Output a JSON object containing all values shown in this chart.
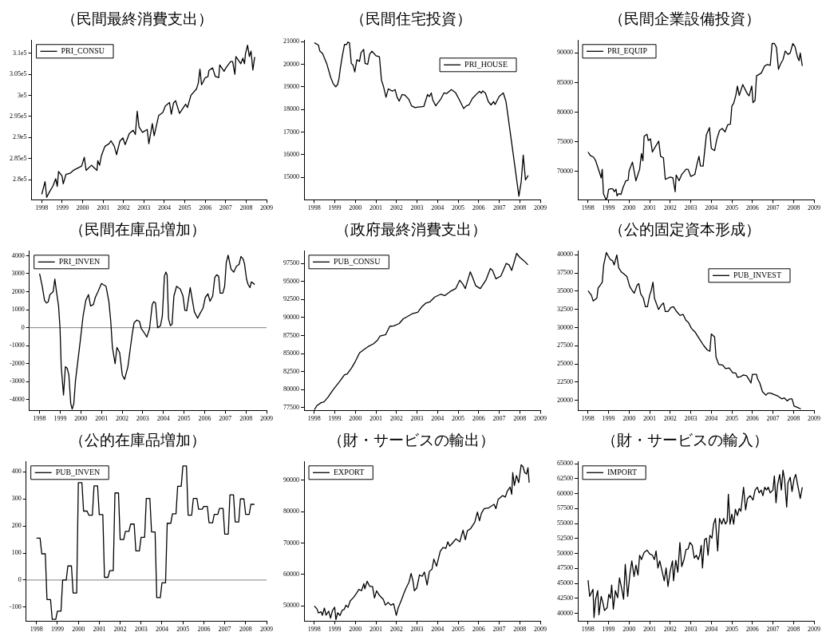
{
  "chart_data": [
    {
      "type": "line",
      "title": "（民間最終消費支出）",
      "legend": "top left",
      "xlim": [
        1997.5,
        2009
      ],
      "xticks": [
        1998,
        1999,
        2000,
        2001,
        2002,
        2003,
        2004,
        2005,
        2006,
        2007,
        2008,
        2009
      ],
      "ylim": [
        275200,
        313000
      ],
      "yticks": [
        {
          "value": 280000,
          "label": "2.8e5"
        },
        {
          "value": 285000,
          "label": "2.85e5"
        },
        {
          "value": 290000,
          "label": "2.9e5"
        },
        {
          "value": 295000,
          "label": "2.95e5"
        },
        {
          "value": 300000,
          "label": "3e5"
        },
        {
          "value": 305000,
          "label": "3.05e5"
        },
        {
          "value": 310000,
          "label": "3.1e5"
        }
      ],
      "x": [
        1998.0,
        1998.16,
        1998.24,
        1998.39,
        1998.55,
        1998.68,
        1998.76,
        1998.82,
        1998.99,
        1999.05,
        1999.18,
        1999.38,
        1999.55,
        1999.95,
        2000.08,
        2000.17,
        2000.43,
        2000.7,
        2000.74,
        2000.83,
        2000.92,
        2001.09,
        2001.29,
        2001.39,
        2001.55,
        2001.66,
        2001.82,
        2001.97,
        2002.08,
        2002.28,
        2002.47,
        2002.58,
        2002.67,
        2002.76,
        2002.93,
        2003.16,
        2003.24,
        2003.41,
        2003.5,
        2003.72,
        2003.92,
        2004.05,
        2004.25,
        2004.34,
        2004.45,
        2004.55,
        2004.74,
        2005.04,
        2005.13,
        2005.3,
        2005.57,
        2005.66,
        2005.74,
        2005.82,
        2006.0,
        2006.13,
        2006.18,
        2006.36,
        2006.49,
        2006.66,
        2006.71,
        2006.92,
        2007.01,
        2007.24,
        2007.34,
        2007.45,
        2007.5,
        2007.74,
        2007.84,
        2007.92,
        2007.97,
        2008.07,
        2008.16,
        2008.24,
        2008.33,
        2008.42
      ],
      "series": [
        {
          "name": "PRI_CONSU",
          "color": "#000000",
          "values": [
            276500,
            279500,
            275800,
            277200,
            278500,
            280200,
            278400,
            281900,
            280900,
            279000,
            281200,
            281500,
            282200,
            283200,
            285300,
            282200,
            283400,
            282200,
            284500,
            283400,
            285700,
            287900,
            288500,
            289200,
            287900,
            285900,
            289100,
            289900,
            288300,
            290900,
            291700,
            290700,
            296200,
            292500,
            291200,
            291900,
            288500,
            293300,
            290400,
            295200,
            295900,
            297500,
            298300,
            295500,
            298200,
            298700,
            295700,
            297900,
            297100,
            300000,
            301500,
            302900,
            306200,
            302500,
            304200,
            304400,
            305900,
            306500,
            304500,
            304200,
            307200,
            305700,
            306500,
            308000,
            308000,
            305000,
            309200,
            307500,
            308800,
            307500,
            309900,
            311900,
            309200,
            310500,
            306000,
            309100
          ]
        }
      ]
    },
    {
      "type": "line",
      "title": "（民間住宅投資）",
      "legend": "top right",
      "xlim": [
        1997.5,
        2009
      ],
      "xticks": [
        1998,
        1999,
        2000,
        2001,
        2002,
        2003,
        2004,
        2005,
        2006,
        2007,
        2008,
        2009
      ],
      "ylim": [
        14000,
        21050
      ],
      "yticks": [
        15000,
        16000,
        17000,
        18000,
        19000,
        20000,
        21000
      ],
      "x": [
        1998.0,
        1998.2,
        1998.27,
        1998.4,
        1998.6,
        1998.8,
        1998.91,
        1999.04,
        1999.13,
        1999.2,
        1999.27,
        1999.36,
        1999.47,
        1999.57,
        1999.63,
        1999.71,
        1999.8,
        1999.89,
        1999.97,
        2000.07,
        2000.2,
        2000.27,
        2000.4,
        2000.47,
        2000.6,
        2000.69,
        2000.8,
        2001.0,
        2001.17,
        2001.27,
        2001.36,
        2001.49,
        2001.6,
        2001.8,
        2001.93,
        2002.03,
        2002.13,
        2002.27,
        2002.4,
        2002.6,
        2002.73,
        2002.91,
        2003.0,
        2003.33,
        2003.51,
        2003.6,
        2003.69,
        2003.77,
        2003.91,
        2004.17,
        2004.31,
        2004.44,
        2004.67,
        2004.87,
        2005.07,
        2005.27,
        2005.4,
        2005.53,
        2005.69,
        2005.91,
        2006.04,
        2006.13,
        2006.2,
        2006.33,
        2006.47,
        2006.6,
        2006.73,
        2006.8,
        2007.0,
        2007.2,
        2007.33,
        2007.43,
        2007.67,
        2007.8,
        2007.96,
        2008.07,
        2008.17,
        2008.28,
        2008.41
      ],
      "series": [
        {
          "name": "PRI_HOUSE",
          "color": "#000000",
          "values": [
            20950,
            20850,
            20580,
            20480,
            20040,
            19410,
            19160,
            19000,
            19100,
            19350,
            19850,
            20350,
            20880,
            20870,
            20980,
            20950,
            20040,
            19950,
            19660,
            20200,
            20130,
            20500,
            20660,
            20040,
            20000,
            20440,
            20580,
            20380,
            20330,
            19290,
            19040,
            18540,
            18910,
            18810,
            18880,
            18540,
            18370,
            18660,
            18640,
            18450,
            18160,
            18080,
            18100,
            18130,
            18660,
            18570,
            18730,
            18410,
            18160,
            18480,
            18730,
            18700,
            18880,
            18750,
            18410,
            18040,
            18160,
            18200,
            18480,
            18690,
            18800,
            18720,
            18820,
            18720,
            18350,
            18200,
            18350,
            18220,
            18580,
            18730,
            18350,
            17700,
            16100,
            15230,
            14160,
            14790,
            15980,
            14880,
            15080
          ]
        }
      ]
    },
    {
      "type": "line",
      "title": "（民間企業設備投資）",
      "legend": "top left",
      "xlim": [
        1997.5,
        2009
      ],
      "xticks": [
        1998,
        1999,
        2000,
        2001,
        2002,
        2003,
        2004,
        2005,
        2006,
        2007,
        2008,
        2009
      ],
      "ylim": [
        65200,
        92100
      ],
      "yticks": [
        70000,
        75000,
        80000,
        85000,
        90000
      ],
      "x": [
        1998.0,
        1998.11,
        1998.27,
        1998.37,
        1998.53,
        1998.64,
        1998.69,
        1998.75,
        1998.87,
        1998.93,
        1999.0,
        1999.09,
        1999.2,
        1999.28,
        1999.36,
        1999.41,
        1999.49,
        1999.6,
        1999.71,
        1999.84,
        1999.95,
        2000.0,
        2000.16,
        2000.33,
        2000.51,
        2000.6,
        2000.67,
        2000.73,
        2000.87,
        2000.93,
        2001.04,
        2001.13,
        2001.27,
        2001.44,
        2001.53,
        2001.67,
        2001.76,
        2002.0,
        2002.13,
        2002.24,
        2002.29,
        2002.43,
        2002.56,
        2002.77,
        2002.87,
        2003.0,
        2003.2,
        2003.31,
        2003.4,
        2003.47,
        2003.6,
        2003.76,
        2003.91,
        2004.0,
        2004.16,
        2004.27,
        2004.4,
        2004.53,
        2004.67,
        2004.8,
        2004.93,
        2005.0,
        2005.09,
        2005.2,
        2005.27,
        2005.36,
        2005.53,
        2005.76,
        2005.84,
        2005.97,
        2006.03,
        2006.13,
        2006.2,
        2006.43,
        2006.6,
        2006.73,
        2006.87,
        2006.96,
        2007.07,
        2007.17,
        2007.27,
        2007.36,
        2007.49,
        2007.6,
        2007.73,
        2007.84,
        2007.97,
        2008.07,
        2008.2,
        2008.27,
        2008.33,
        2008.43
      ],
      "series": [
        {
          "name": "PRI_EQUIP",
          "color": "#000000",
          "values": [
            73270,
            72680,
            72400,
            71800,
            70100,
            68900,
            70360,
            66240,
            65270,
            65500,
            66960,
            67060,
            67060,
            66570,
            67000,
            65890,
            66240,
            66100,
            67350,
            68420,
            68520,
            70120,
            71570,
            68420,
            70360,
            73030,
            71810,
            75940,
            76270,
            75210,
            75500,
            73270,
            74140,
            75110,
            72540,
            72300,
            68660,
            69050,
            68900,
            66570,
            69390,
            68420,
            69490,
            70360,
            70360,
            69150,
            69500,
            71330,
            72540,
            70940,
            70900,
            76180,
            77390,
            73880,
            73510,
            75450,
            76910,
            77250,
            76670,
            77880,
            77980,
            81030,
            81520,
            82970,
            84420,
            82820,
            84670,
            83060,
            82770,
            84420,
            81610,
            82000,
            86120,
            86600,
            87820,
            88060,
            87910,
            91600,
            91600,
            90970,
            87240,
            88060,
            88880,
            90340,
            89760,
            90000,
            91600,
            91120,
            89270,
            88690,
            90000,
            87820
          ]
        }
      ]
    },
    {
      "type": "line",
      "title": "（民間在庫品増加）",
      "legend": "top left",
      "xlim": [
        1997.5,
        2009
      ],
      "xticks": [
        1998,
        1999,
        2000,
        2001,
        2002,
        2003,
        2004,
        2005,
        2006,
        2007,
        2008,
        2009
      ],
      "ylim": [
        -4600,
        4250
      ],
      "yticks": [
        -4000,
        -3000,
        -2000,
        -1000,
        0,
        1000,
        2000,
        3000,
        4000
      ],
      "ref_lines": [
        {
          "axis": "y",
          "value": 0,
          "color": "#808080"
        }
      ],
      "x": [
        1998.0,
        1998.13,
        1998.24,
        1998.33,
        1998.42,
        1998.5,
        1998.66,
        1998.74,
        1998.82,
        1998.92,
        1998.99,
        1999.05,
        1999.16,
        1999.25,
        1999.34,
        1999.42,
        1999.51,
        1999.58,
        1999.66,
        1999.74,
        1999.97,
        2000.11,
        2000.24,
        2000.37,
        2000.47,
        2000.61,
        2000.7,
        2000.83,
        2001.0,
        2001.09,
        2001.22,
        2001.36,
        2001.45,
        2001.53,
        2001.66,
        2001.75,
        2001.88,
        2002.01,
        2002.12,
        2002.28,
        2002.37,
        2002.5,
        2002.58,
        2002.71,
        2002.84,
        2002.93,
        2003.07,
        2003.2,
        2003.33,
        2003.46,
        2003.53,
        2003.62,
        2003.72,
        2003.86,
        2003.95,
        2004.05,
        2004.12,
        2004.18,
        2004.25,
        2004.34,
        2004.42,
        2004.51,
        2004.64,
        2004.82,
        2004.95,
        2005.04,
        2005.13,
        2005.3,
        2005.5,
        2005.66,
        2005.79,
        2005.92,
        2006.03,
        2006.16,
        2006.26,
        2006.39,
        2006.49,
        2006.58,
        2006.68,
        2006.75,
        2006.88,
        2006.97,
        2007.05,
        2007.14,
        2007.28,
        2007.41,
        2007.54,
        2007.67,
        2007.76,
        2007.87,
        2007.93,
        2008.03,
        2008.11,
        2008.2,
        2008.26,
        2008.37,
        2008.42
      ],
      "series": [
        {
          "name": "PRI_INVEN",
          "color": "#000000",
          "values": [
            3010,
            2300,
            1520,
            1370,
            1440,
            1840,
            2000,
            2700,
            2000,
            1210,
            0,
            -2170,
            -3740,
            -2170,
            -2250,
            -2640,
            -4210,
            -4520,
            -4210,
            -2950,
            -750,
            660,
            1520,
            1840,
            1210,
            1290,
            1680,
            2000,
            2460,
            2390,
            2300,
            1440,
            350,
            -1100,
            -2000,
            -1100,
            -1380,
            -2640,
            -2870,
            -2170,
            -1380,
            -280,
            270,
            420,
            350,
            -50,
            -280,
            -520,
            -50,
            1290,
            1440,
            1380,
            0,
            110,
            660,
            2860,
            3090,
            2940,
            500,
            110,
            190,
            1760,
            2300,
            2150,
            1760,
            970,
            940,
            2230,
            890,
            530,
            820,
            1080,
            1680,
            1880,
            1470,
            1760,
            2780,
            2940,
            2860,
            1920,
            1920,
            2300,
            3640,
            4030,
            3250,
            3090,
            3410,
            3520,
            3960,
            3800,
            3560,
            2700,
            2390,
            2230,
            2540,
            2460,
            2390
          ]
        }
      ]
    },
    {
      "type": "line",
      "title": "（政府最終消費支出）",
      "legend": "top left",
      "xlim": [
        1997.5,
        2009
      ],
      "xticks": [
        1998,
        1999,
        2000,
        2001,
        2002,
        2003,
        2004,
        2005,
        2006,
        2007,
        2008,
        2009
      ],
      "ylim": [
        77100,
        99200
      ],
      "yticks": [
        77500,
        80000,
        82500,
        85000,
        87500,
        90000,
        92500,
        95000,
        97500
      ],
      "x": [
        1998.0,
        1998.13,
        1998.33,
        1998.47,
        1998.67,
        1998.93,
        1999.2,
        1999.47,
        1999.6,
        1999.8,
        2000.0,
        2000.2,
        2000.47,
        2000.67,
        2000.87,
        2001.07,
        2001.2,
        2001.47,
        2001.67,
        2001.87,
        2002.13,
        2002.33,
        2002.53,
        2002.76,
        2003.03,
        2003.23,
        2003.42,
        2003.62,
        2003.86,
        2004.15,
        2004.35,
        2004.62,
        2004.88,
        2005.08,
        2005.24,
        2005.35,
        2005.59,
        2005.68,
        2005.86,
        2006.08,
        2006.35,
        2006.57,
        2006.68,
        2006.84,
        2007.08,
        2007.34,
        2007.48,
        2007.61,
        2007.85,
        2008.0,
        2008.2,
        2008.4
      ],
      "series": [
        {
          "name": "PUB_CONSU",
          "color": "#000000",
          "values": [
            77200,
            77790,
            78180,
            78290,
            78950,
            80040,
            81010,
            82060,
            82170,
            82950,
            83920,
            85080,
            85670,
            86050,
            86330,
            86830,
            87420,
            87610,
            88770,
            88850,
            89160,
            89820,
            90130,
            90520,
            90710,
            91480,
            91990,
            92150,
            92840,
            93230,
            93040,
            93620,
            94010,
            95170,
            94590,
            94010,
            96340,
            95750,
            94400,
            94010,
            95170,
            96800,
            96530,
            95370,
            95750,
            97500,
            97310,
            96530,
            98900,
            98350,
            97890,
            97310
          ]
        }
      ]
    },
    {
      "type": "line",
      "title": "（公的固定資本形成）",
      "legend": "top right",
      "xlim": [
        1997.5,
        2009
      ],
      "xticks": [
        1998,
        1999,
        2000,
        2001,
        2002,
        2003,
        2004,
        2005,
        2006,
        2007,
        2008,
        2009
      ],
      "ylim": [
        18600,
        40500
      ],
      "yticks": [
        20000,
        22500,
        25000,
        27500,
        30000,
        32500,
        35000,
        37500,
        40000
      ],
      "x": [
        1998.0,
        1998.16,
        1998.25,
        1998.43,
        1998.49,
        1998.6,
        1998.69,
        1998.76,
        1998.89,
        1998.99,
        1999.09,
        1999.19,
        1999.27,
        1999.4,
        1999.49,
        1999.63,
        1999.72,
        1999.89,
        2000.03,
        2000.16,
        2000.25,
        2000.39,
        2000.47,
        2000.56,
        2000.69,
        2000.79,
        2000.89,
        2001.0,
        2001.07,
        2001.16,
        2001.23,
        2001.43,
        2001.56,
        2001.67,
        2001.76,
        2001.89,
        2002.03,
        2002.16,
        2002.29,
        2002.47,
        2002.63,
        2002.76,
        2002.89,
        2003.03,
        2003.23,
        2003.43,
        2003.63,
        2003.8,
        2003.93,
        2004.0,
        2004.16,
        2004.23,
        2004.36,
        2004.56,
        2004.69,
        2004.87,
        2005.05,
        2005.19,
        2005.27,
        2005.43,
        2005.56,
        2005.72,
        2005.85,
        2005.93,
        2006.0,
        2006.2,
        2006.25,
        2006.36,
        2006.49,
        2006.65,
        2006.76,
        2006.89,
        2007.05,
        2007.23,
        2007.43,
        2007.56,
        2007.69,
        2007.83,
        2007.93,
        2008.03,
        2008.2,
        2008.36
      ],
      "series": [
        {
          "name": "PUB_INVEST",
          "color": "#000000",
          "values": [
            35050,
            34460,
            33660,
            34060,
            35450,
            35840,
            36240,
            38610,
            40320,
            39800,
            39330,
            39210,
            38610,
            40000,
            38220,
            37620,
            37430,
            37030,
            35640,
            35050,
            34730,
            35840,
            36040,
            34650,
            34060,
            32870,
            32870,
            34460,
            35050,
            36240,
            34060,
            32480,
            33070,
            33390,
            32200,
            32200,
            32750,
            32870,
            32280,
            31680,
            31800,
            31010,
            30690,
            29900,
            29310,
            28400,
            27530,
            26930,
            26730,
            29110,
            28710,
            25940,
            24950,
            24830,
            24360,
            24440,
            23760,
            23760,
            23170,
            23250,
            23490,
            23370,
            22780,
            22380,
            23570,
            23570,
            22970,
            22380,
            21190,
            20710,
            20990,
            20990,
            20790,
            20600,
            20200,
            20320,
            19920,
            20200,
            20200,
            19210,
            19010,
            18810
          ]
        }
      ]
    },
    {
      "type": "line",
      "title": "（公的在庫品増加）",
      "legend": "top left",
      "xlim": [
        1997.5,
        2009
      ],
      "xticks": [
        1998,
        1999,
        2000,
        2001,
        2002,
        2003,
        2004,
        2005,
        2006,
        2007,
        2008,
        2009
      ],
      "ylim": [
        -152,
        437
      ],
      "yticks": [
        -100,
        0,
        100,
        200,
        300,
        400
      ],
      "ref_lines": [
        {
          "axis": "y",
          "value": 0,
          "color": "#808080"
        }
      ],
      "x": [
        1998.0,
        1998.17,
        1998.25,
        1998.42,
        1998.5,
        1998.67,
        1998.75,
        1998.92,
        1999.0,
        1999.17,
        1999.25,
        1999.42,
        1999.5,
        1999.67,
        1999.75,
        1999.92,
        2000.0,
        2000.17,
        2000.25,
        2000.42,
        2000.5,
        2000.67,
        2000.75,
        2000.92,
        2001.0,
        2001.17,
        2001.25,
        2001.42,
        2001.5,
        2001.67,
        2001.75,
        2001.92,
        2002.0,
        2002.17,
        2002.25,
        2002.42,
        2002.5,
        2002.67,
        2002.75,
        2002.92,
        2003.0,
        2003.17,
        2003.25,
        2003.42,
        2003.5,
        2003.67,
        2003.75,
        2003.92,
        2004.0,
        2004.17,
        2004.25,
        2004.42,
        2004.5,
        2004.67,
        2004.75,
        2004.92,
        2005.0,
        2005.17,
        2005.25,
        2005.42,
        2005.5,
        2005.67,
        2005.75,
        2005.92,
        2006.0,
        2006.17,
        2006.25,
        2006.42,
        2006.5,
        2006.67,
        2006.75,
        2006.92,
        2007.0,
        2007.17,
        2007.25,
        2007.42,
        2007.5,
        2007.67,
        2007.75,
        2007.92,
        2008.0,
        2008.17,
        2008.25,
        2008.42
      ],
      "series": [
        {
          "name": "PUB_INVEN",
          "color": "#000000",
          "values": [
            155,
            155,
            97,
            97,
            -72,
            -72,
            -145,
            -145,
            -115,
            -115,
            0,
            0,
            52,
            52,
            -48,
            -48,
            360,
            360,
            255,
            255,
            240,
            240,
            348,
            348,
            242,
            242,
            10,
            10,
            35,
            35,
            322,
            322,
            150,
            150,
            180,
            180,
            207,
            207,
            108,
            108,
            158,
            158,
            302,
            302,
            178,
            178,
            -65,
            -65,
            -10,
            -10,
            210,
            210,
            245,
            245,
            347,
            347,
            422,
            422,
            240,
            240,
            302,
            302,
            262,
            262,
            272,
            272,
            212,
            212,
            243,
            243,
            265,
            265,
            170,
            170,
            315,
            315,
            215,
            215,
            300,
            300,
            243,
            243,
            280,
            280
          ]
        }
      ]
    },
    {
      "type": "line",
      "title": "（財・サービスの輸出）",
      "legend": "top left",
      "xlim": [
        1997.5,
        2009
      ],
      "xticks": [
        1998,
        1999,
        2000,
        2001,
        2002,
        2003,
        2004,
        2005,
        2006,
        2007,
        2008,
        2009
      ],
      "ylim": [
        45100,
        95900
      ],
      "yticks": [
        50000,
        60000,
        70000,
        80000,
        90000
      ],
      "x": [
        1998.0,
        1998.13,
        1998.2,
        1998.33,
        1998.39,
        1998.49,
        1998.57,
        1998.7,
        1998.79,
        1998.88,
        1998.99,
        1999.05,
        1999.14,
        1999.25,
        1999.36,
        1999.45,
        1999.54,
        1999.64,
        1999.75,
        1999.91,
        2000.04,
        2000.17,
        2000.3,
        2000.41,
        2000.46,
        2000.57,
        2000.7,
        2000.83,
        2000.93,
        2001.03,
        2001.16,
        2001.36,
        2001.46,
        2001.59,
        2001.72,
        2001.86,
        2001.99,
        2002.08,
        2002.25,
        2002.38,
        2002.47,
        2002.61,
        2002.71,
        2002.8,
        2002.87,
        2002.99,
        2003.12,
        2003.25,
        2003.36,
        2003.49,
        2003.6,
        2003.73,
        2003.82,
        2003.95,
        2004.13,
        2004.26,
        2004.4,
        2004.5,
        2004.59,
        2004.72,
        2004.89,
        2005.08,
        2005.24,
        2005.35,
        2005.45,
        2005.61,
        2005.81,
        2005.94,
        2006.04,
        2006.14,
        2006.27,
        2006.47,
        2006.75,
        2006.84,
        2006.95,
        2007.17,
        2007.3,
        2007.39,
        2007.53,
        2007.61,
        2007.66,
        2007.74,
        2007.84,
        2007.95,
        2008.07,
        2008.16,
        2008.24,
        2008.33,
        2008.4,
        2008.46
      ],
      "series": [
        {
          "name": "EXPORT",
          "color": "#000000",
          "values": [
            49910,
            48990,
            47700,
            48100,
            46970,
            49270,
            47000,
            48300,
            46050,
            48400,
            49540,
            45590,
            47800,
            46900,
            48620,
            48810,
            50190,
            49500,
            51560,
            52670,
            53860,
            55240,
            54800,
            57080,
            55430,
            57820,
            56160,
            56160,
            52480,
            54780,
            53400,
            52020,
            50190,
            51100,
            50190,
            50640,
            46970,
            49270,
            52020,
            54320,
            55700,
            57540,
            60300,
            58000,
            54780,
            55700,
            59840,
            59380,
            60760,
            56620,
            60950,
            61680,
            64900,
            62600,
            67380,
            68580,
            68300,
            70410,
            69030,
            69950,
            71330,
            70410,
            74090,
            71050,
            73900,
            74630,
            76660,
            79890,
            77130,
            79610,
            80990,
            81170,
            82370,
            80990,
            83930,
            85130,
            84670,
            86510,
            87890,
            85590,
            92480,
            88350,
            91560,
            89260,
            94970,
            94320,
            92480,
            92020,
            94050,
            89260
          ]
        }
      ]
    },
    {
      "type": "line",
      "title": "（財・サービスの輸入）",
      "legend": "top left",
      "xlim": [
        1997.5,
        2009
      ],
      "xticks": [
        1998,
        1999,
        2000,
        2001,
        2002,
        2003,
        2004,
        2005,
        2006,
        2007,
        2008,
        2009
      ],
      "ylim": [
        38700,
        65300
      ],
      "yticks": [
        40000,
        42500,
        45000,
        47500,
        50000,
        52500,
        55000,
        57500,
        60000,
        62500,
        65000
      ],
      "x": [
        1998.0,
        1998.08,
        1998.24,
        1998.29,
        1998.37,
        1998.47,
        1998.53,
        1998.64,
        1998.73,
        1998.8,
        1998.93,
        1999.01,
        1999.09,
        1999.15,
        1999.23,
        1999.33,
        1999.44,
        1999.53,
        1999.63,
        1999.73,
        1999.81,
        1999.93,
        2000.03,
        2000.13,
        2000.24,
        2000.33,
        2000.43,
        2000.51,
        2000.6,
        2000.73,
        2000.87,
        2001.0,
        2001.13,
        2001.23,
        2001.31,
        2001.4,
        2001.49,
        2001.71,
        2001.8,
        2001.89,
        2002.0,
        2002.11,
        2002.16,
        2002.27,
        2002.37,
        2002.47,
        2002.56,
        2002.67,
        2002.77,
        2002.87,
        2002.96,
        2003.07,
        2003.17,
        2003.27,
        2003.36,
        2003.44,
        2003.51,
        2003.57,
        2003.67,
        2003.76,
        2003.84,
        2003.93,
        2004.03,
        2004.11,
        2004.2,
        2004.31,
        2004.4,
        2004.51,
        2004.6,
        2004.69,
        2004.77,
        2004.83,
        2004.91,
        2005.0,
        2005.09,
        2005.17,
        2005.27,
        2005.36,
        2005.44,
        2005.57,
        2005.67,
        2005.76,
        2005.89,
        2006.03,
        2006.13,
        2006.24,
        2006.33,
        2006.43,
        2006.51,
        2006.6,
        2006.69,
        2006.77,
        2006.87,
        2007.0,
        2007.07,
        2007.15,
        2007.23,
        2007.33,
        2007.41,
        2007.49,
        2007.57,
        2007.67,
        2007.73,
        2007.84,
        2007.93,
        2008.03,
        2008.11,
        2008.2,
        2008.33,
        2008.43
      ],
      "series": [
        {
          "name": "IMPORT",
          "color": "#000000",
          "values": [
            45540,
            42840,
            44020,
            39290,
            42370,
            43790,
            39760,
            42840,
            41660,
            40470,
            40950,
            43170,
            42510,
            44730,
            40710,
            43790,
            42600,
            45920,
            44260,
            42370,
            48190,
            42840,
            46390,
            48760,
            46150,
            48050,
            46390,
            49710,
            48990,
            50180,
            50560,
            49940,
            49710,
            48990,
            50420,
            47580,
            48760,
            45440,
            47580,
            44500,
            47100,
            48760,
            45440,
            48860,
            46870,
            51840,
            47810,
            48990,
            50650,
            50750,
            51840,
            51360,
            49230,
            49710,
            48990,
            49800,
            51360,
            47580,
            52310,
            52550,
            49710,
            53020,
            52550,
            54910,
            55860,
            50420,
            55860,
            54910,
            55860,
            54910,
            55390,
            59890,
            54910,
            56570,
            54910,
            57380,
            56340,
            57520,
            57050,
            61070,
            57280,
            59180,
            59650,
            58940,
            60600,
            61070,
            60120,
            60600,
            59650,
            61070,
            60600,
            61070,
            60120,
            60600,
            62960,
            58470,
            61540,
            63200,
            60600,
            63910,
            62250,
            57760,
            61780,
            62730,
            60360,
            62490,
            63200,
            61540,
            59180,
            61070
          ]
        }
      ]
    }
  ]
}
